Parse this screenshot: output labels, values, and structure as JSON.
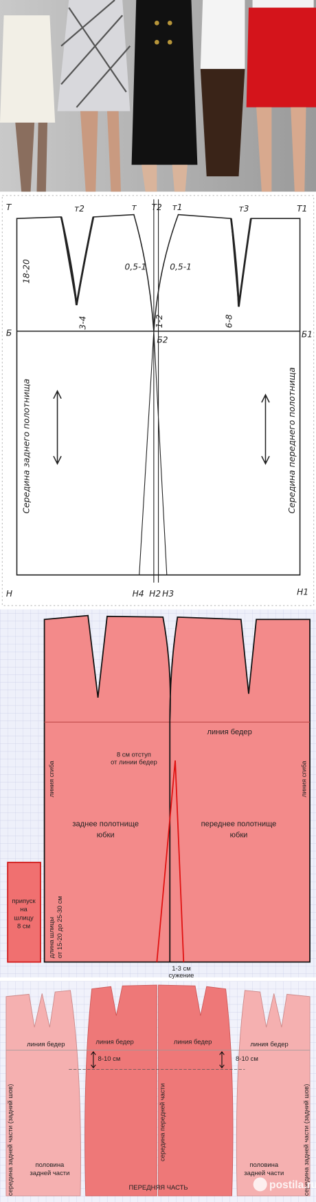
{
  "draft": {
    "top": {
      "T": "Т",
      "t2": "т2",
      "t": "т",
      "T2": "Т2",
      "t1": "т1",
      "t3": "т3",
      "T1": "Т1"
    },
    "measures": {
      "waist_depth": "18-20",
      "ease_left": "0,5-1",
      "ease_right": "0,5-1",
      "back_dart": "3-4",
      "side": "1-2",
      "front_dart": "6-8"
    },
    "hip": {
      "B": "Б",
      "B2": "Б2",
      "B1": "Б1"
    },
    "centers": {
      "back": "Середина заднего полотнища",
      "front": "Середина переднего полотнища"
    },
    "hem": {
      "H": "Н",
      "H4": "Н4",
      "H2": "Н2",
      "H3": "Н3",
      "H1": "Н1"
    }
  },
  "pattern": {
    "hip_line": "линия бедер",
    "offset": [
      "8 см отступ",
      "от линии бедер"
    ],
    "fold_left": "линия сгиба",
    "fold_right": "линия сгиба",
    "back_panel": [
      "заднее полотнище",
      "юбки"
    ],
    "front_panel": [
      "переднее полотнище",
      "юбки"
    ],
    "slit_allowance": [
      "припуск",
      "на",
      "шлицу",
      "8 см"
    ],
    "slit_length": [
      "длина шлицы",
      "от 15-20 до 25-30 см"
    ],
    "taper": [
      "1-3 см",
      "сужение"
    ]
  },
  "pieces": {
    "hip_lines": [
      "линия бедер",
      "линия бедер",
      "линия бедер",
      "линия бедер"
    ],
    "depth": [
      "8-10 см",
      "8-10 см"
    ],
    "back_center": [
      "середина задней части (задний шов)",
      "середина задней части (задний шов)"
    ],
    "front_center": "середина передней части",
    "half_back": [
      [
        "половина",
        "задней части"
      ],
      [
        "половина",
        "задней части"
      ]
    ],
    "front_part": "ПЕРЕДНЯЯ ЧАСТЬ"
  },
  "watermark": "postila.ru"
}
